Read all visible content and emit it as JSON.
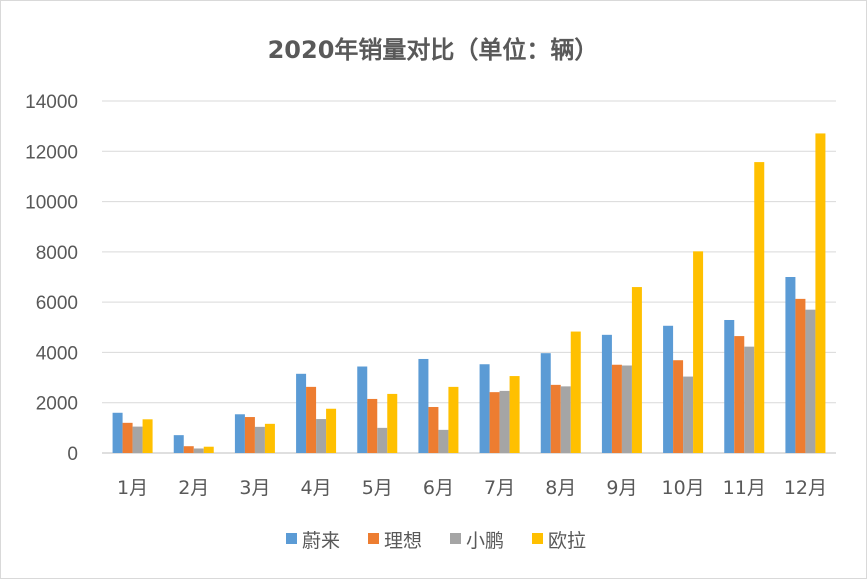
{
  "chart_data": {
    "type": "bar",
    "title": "2020年销量对比（单位：辆）",
    "xlabel": "",
    "ylabel": "",
    "ylim": [
      0,
      14000
    ],
    "yticks": [
      0,
      2000,
      4000,
      6000,
      8000,
      10000,
      12000,
      14000
    ],
    "ytick_labels": [
      "0",
      "2000",
      "4000",
      "6000",
      "8000",
      "10000",
      "12000",
      "14000"
    ],
    "grid": true,
    "legend_position": "bottom",
    "categories": [
      "1月",
      "2月",
      "3月",
      "4月",
      "5月",
      "6月",
      "7月",
      "8月",
      "9月",
      "10月",
      "11月",
      "12月"
    ],
    "series": [
      {
        "name": "蔚来",
        "color": "#5B9BD5",
        "values": [
          1600,
          710,
          1540,
          3150,
          3440,
          3740,
          3530,
          3970,
          4700,
          5060,
          5290,
          7000
        ]
      },
      {
        "name": "理想",
        "color": "#ED7D31",
        "values": [
          1200,
          270,
          1430,
          2630,
          2150,
          1830,
          2420,
          2710,
          3510,
          3690,
          4650,
          6130
        ]
      },
      {
        "name": "小鹏",
        "color": "#A5A5A5",
        "values": [
          1050,
          180,
          1040,
          1350,
          1000,
          920,
          2470,
          2650,
          3480,
          3040,
          4230,
          5700
        ]
      },
      {
        "name": "欧拉",
        "color": "#FFC000",
        "values": [
          1340,
          250,
          1160,
          1760,
          2350,
          2630,
          3060,
          4830,
          6600,
          8020,
          11570,
          12710
        ]
      }
    ]
  }
}
